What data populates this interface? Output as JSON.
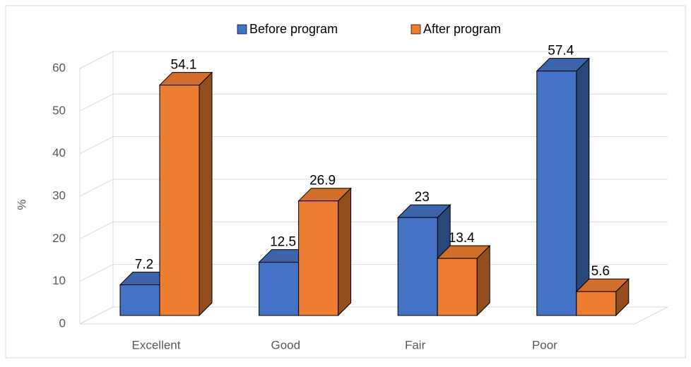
{
  "chart_data": {
    "type": "bar3d",
    "y_label": "%",
    "categories": [
      "Excellent",
      "Good",
      "Fair",
      "Poor"
    ],
    "series": [
      {
        "name": "Before program",
        "color": "#4472c4",
        "values": [
          7.2,
          12.5,
          23,
          57.4
        ]
      },
      {
        "name": "After program",
        "color": "#ed7d31",
        "values": [
          54.1,
          26.9,
          13.4,
          5.6
        ]
      }
    ],
    "ylim": [
      0,
      60
    ],
    "yticks": [
      0,
      10,
      20,
      30,
      40,
      50,
      60
    ],
    "grid": true,
    "legend": "top"
  }
}
